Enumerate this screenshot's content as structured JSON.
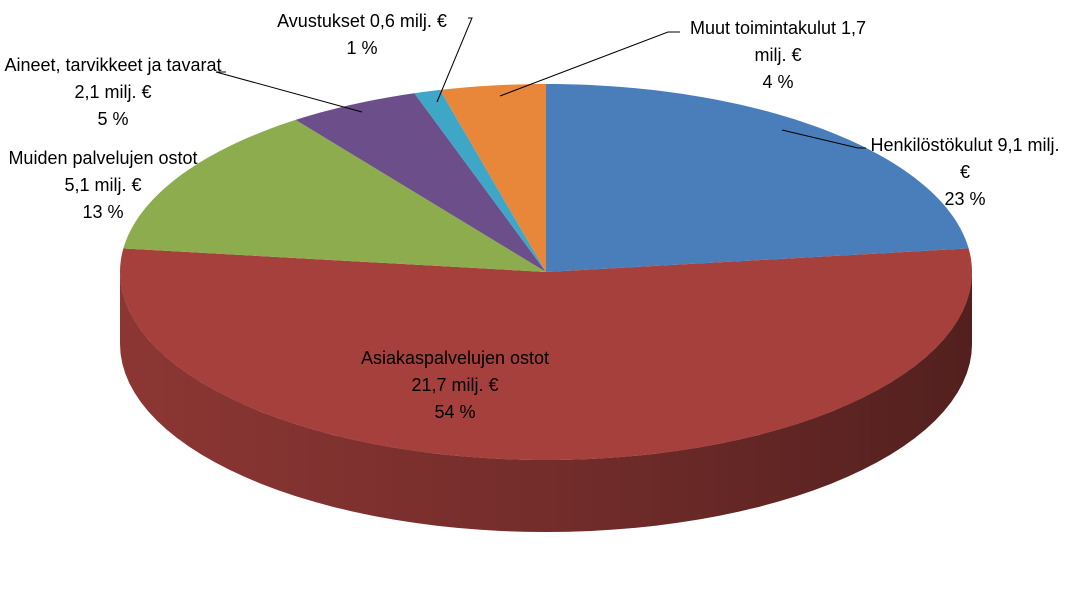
{
  "chart_data": {
    "type": "pie3d",
    "categories": [
      "Henkilöstökulut 9,1 milj. €",
      "Asiakaspalvelujen ostot 21,7 milj. €",
      "Muiden palvelujen ostot 5,1 milj. €",
      "Aineet, tarvikkeet ja tavarat 2,1 milj. €",
      "Avustukset 0,6 milj. €",
      "Muut toimintakulut 1,7 milj. €"
    ],
    "values": [
      23,
      54,
      13,
      5,
      1,
      4
    ],
    "value_labels": [
      "23 %",
      "54 %",
      "13 %",
      "5 %",
      "1 %",
      "4 %"
    ],
    "colors": [
      "#4a7ebb",
      "#a5403d",
      "#8cac4d",
      "#6c4f8a",
      "#3ea6c6",
      "#e8863a"
    ]
  }
}
